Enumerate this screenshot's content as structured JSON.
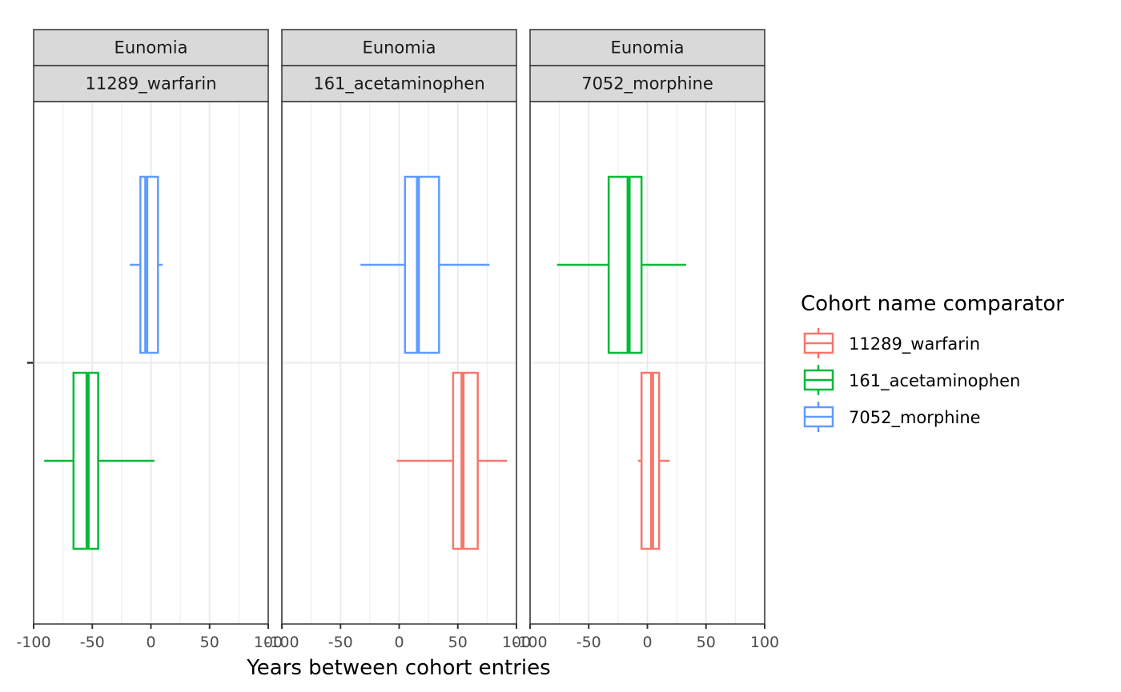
{
  "colors": {
    "11289_warfarin": "#F8766D",
    "161_acetaminophen": "#00BA38",
    "7052_morphine": "#619CFF",
    "strip_fill": "#D9D9D9",
    "grid": "#EBEBEB"
  },
  "chart_data": {
    "type": "boxplot",
    "orientation": "horizontal",
    "xlabel": "Years between cohort entries",
    "ylabel": "",
    "xlim": [
      -100,
      100
    ],
    "xticks": [
      -100,
      -50,
      0,
      50,
      100
    ],
    "xtick_labels": [
      "-100",
      "-50",
      "0",
      "50",
      "100"
    ],
    "grid": true,
    "legend": {
      "title": "Cohort name comparator",
      "position": "right",
      "entries": [
        "11289_warfarin",
        "161_acetaminophen",
        "7052_morphine"
      ]
    },
    "panels": [
      {
        "strip_top": "Eunomia",
        "strip_bottom": "11289_warfarin",
        "boxes": [
          {
            "series": "7052_morphine",
            "min": -18,
            "q1": -9,
            "median": -4,
            "q3": 6,
            "max": 10
          },
          {
            "series": "161_acetaminophen",
            "min": -91,
            "q1": -66,
            "median": -54,
            "q3": -45,
            "max": 3
          }
        ]
      },
      {
        "strip_top": "Eunomia",
        "strip_bottom": "161_acetaminophen",
        "boxes": [
          {
            "series": "7052_morphine",
            "min": -33,
            "q1": 5,
            "median": 16,
            "q3": 34,
            "max": 77
          },
          {
            "series": "11289_warfarin",
            "min": -2,
            "q1": 46,
            "median": 54,
            "q3": 67,
            "max": 92
          }
        ]
      },
      {
        "strip_top": "Eunomia",
        "strip_bottom": "7052_morphine",
        "boxes": [
          {
            "series": "161_acetaminophen",
            "min": -77,
            "q1": -33,
            "median": -16,
            "q3": -5,
            "max": 33
          },
          {
            "series": "11289_warfarin",
            "min": -8,
            "q1": -5,
            "median": 4,
            "q3": 10,
            "max": 19
          }
        ]
      }
    ]
  }
}
